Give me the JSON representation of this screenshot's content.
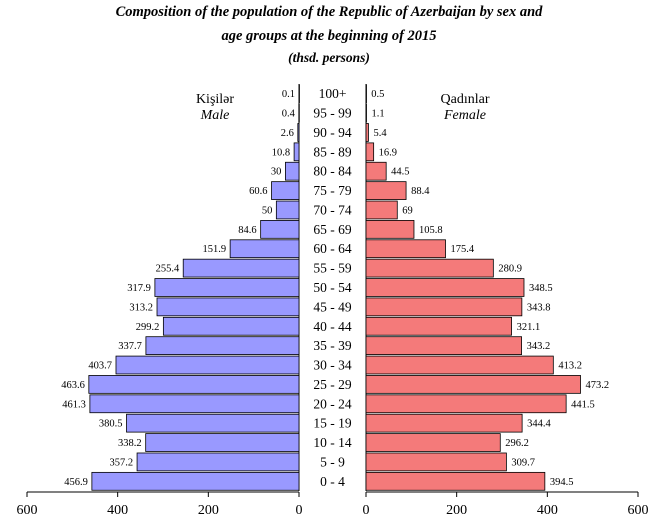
{
  "title": {
    "line1": "Composition of the population of the Republic of Azerbaijan  by sex and",
    "line2": "age groups at the beginning of 2015",
    "line3": "(thsd. persons)"
  },
  "labels": {
    "male_local": "Kişilər",
    "male_en": "Male",
    "female_local": "Qadınlar",
    "female_en": "Female"
  },
  "colors": {
    "male": "#9999ff",
    "female": "#f47a7a"
  },
  "chart_data": {
    "type": "bar",
    "orientation": "horizontal-population-pyramid",
    "title": "Composition of the population of the Republic of Azerbaijan  by sex and age groups at the beginning of 2015",
    "unit": "(thsd. persons)",
    "categories": [
      "100+",
      "95 - 99",
      "90 - 94",
      "85 - 89",
      "80 - 84",
      "75 - 79",
      "70 - 74",
      "65 - 69",
      "60 - 64",
      "55 - 59",
      "50 - 54",
      "45 - 49",
      "40 - 44",
      "35 - 39",
      "30 - 34",
      "25 - 29",
      "20 - 24",
      "15 - 19",
      "10 - 14",
      "5 - 9",
      "0 - 4"
    ],
    "series": [
      {
        "name": "Kişilər Male",
        "side": "left",
        "values": [
          0.1,
          0.4,
          2.6,
          10.8,
          30,
          60.6,
          50,
          84.6,
          151.9,
          255.4,
          317.9,
          313.2,
          299.2,
          337.7,
          403.7,
          463.6,
          461.3,
          380.5,
          338.2,
          357.2,
          456.9
        ]
      },
      {
        "name": "Qadınlar Female",
        "side": "right",
        "values": [
          0.5,
          1.1,
          5.4,
          16.9,
          44.5,
          88.4,
          69,
          105.8,
          175.4,
          280.9,
          348.5,
          343.8,
          321.1,
          343.2,
          413.2,
          473.2,
          441.5,
          344.4,
          296.2,
          309.7,
          394.5
        ]
      }
    ],
    "male_axis_ticks": [
      "600",
      "400",
      "200",
      "0"
    ],
    "female_axis_ticks": [
      "0",
      "200",
      "400",
      "600"
    ],
    "xlim": [
      0,
      600
    ],
    "grid": false,
    "legend": "none"
  }
}
